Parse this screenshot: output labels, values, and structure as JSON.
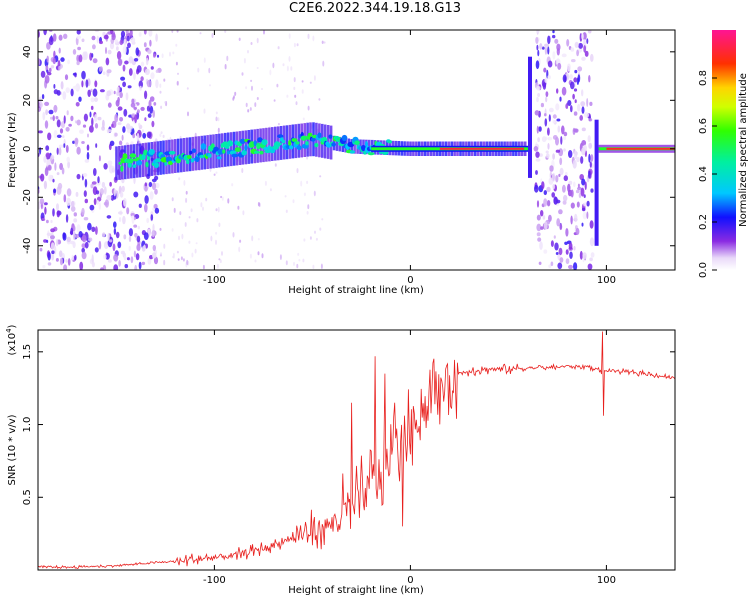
{
  "title": "C2E6.2022.344.19.18.G13",
  "chart_data": [
    {
      "type": "heatmap",
      "xlabel": "Height of straight line (km)",
      "ylabel": "Frequency (Hz)",
      "xlim": [
        -190,
        135
      ],
      "ylim": [
        -50,
        49
      ],
      "xticks": [
        -100,
        0,
        100
      ],
      "yticks": [
        -40,
        -20,
        0,
        20,
        40
      ],
      "colorbar": {
        "label": "Normalized spectral amplitude",
        "range": [
          0,
          1
        ],
        "ticks": [
          0.0,
          0.2,
          0.4,
          0.6,
          0.8
        ]
      },
      "features": [
        {
          "kind": "broadband_noise",
          "x_range": [
            -190,
            -128
          ],
          "amplitude": 0.25
        },
        {
          "kind": "broadband_noise",
          "x_range": [
            64,
            93
          ],
          "amplitude": 0.25
        },
        {
          "kind": "carrier_line",
          "x_range": [
            -150,
            135
          ],
          "center_freq": [
            [
              -150,
              -6
            ],
            [
              -50,
              4
            ],
            [
              -30,
              1
            ],
            [
              0,
              0
            ],
            [
              135,
              0
            ]
          ],
          "peak_amplitude": 0.95
        }
      ]
    },
    {
      "type": "line",
      "xlabel": "Height of straight line (km)",
      "ylabel": "SNR (10 * v/v)",
      "scale_label": "(x10",
      "scale_exponent": "4",
      "xlim": [
        -190,
        135
      ],
      "ylim": [
        0,
        1.65
      ],
      "xticks": [
        -100,
        0,
        100
      ],
      "yticks": [
        0.5,
        1.0,
        1.5
      ],
      "ytick_labels": [
        "0.5",
        "1.0",
        "1.5"
      ],
      "series": [
        {
          "color": "#e8201e",
          "x": [
            -190,
            -170,
            -150,
            -130,
            -110,
            -90,
            -80,
            -70,
            -60,
            -50,
            -40,
            -30,
            -25,
            -20,
            -15,
            -10,
            -5,
            0,
            5,
            10,
            15,
            20,
            25,
            30,
            40,
            50,
            60,
            70,
            80,
            90,
            95,
            98,
            100,
            105,
            110,
            120,
            135
          ],
          "y": [
            0.02,
            0.02,
            0.03,
            0.05,
            0.07,
            0.1,
            0.13,
            0.17,
            0.22,
            0.27,
            0.32,
            0.42,
            0.5,
            0.58,
            0.68,
            0.78,
            0.88,
            0.98,
            1.08,
            1.18,
            1.25,
            1.31,
            1.35,
            1.37,
            1.38,
            1.38,
            1.39,
            1.39,
            1.4,
            1.4,
            1.38,
            1.36,
            1.37,
            1.37,
            1.36,
            1.35,
            1.32
          ]
        }
      ],
      "spikes": [
        {
          "x": -18,
          "y": 1.47
        },
        {
          "x": -13,
          "y": 1.35
        },
        {
          "x": -8,
          "y": 1.15
        },
        {
          "x": -30,
          "y": 1.15
        },
        {
          "x": -4,
          "y": 0.3
        },
        {
          "x": 98,
          "y": 1.64
        },
        {
          "x": 98.5,
          "y": 1.06
        }
      ]
    }
  ]
}
